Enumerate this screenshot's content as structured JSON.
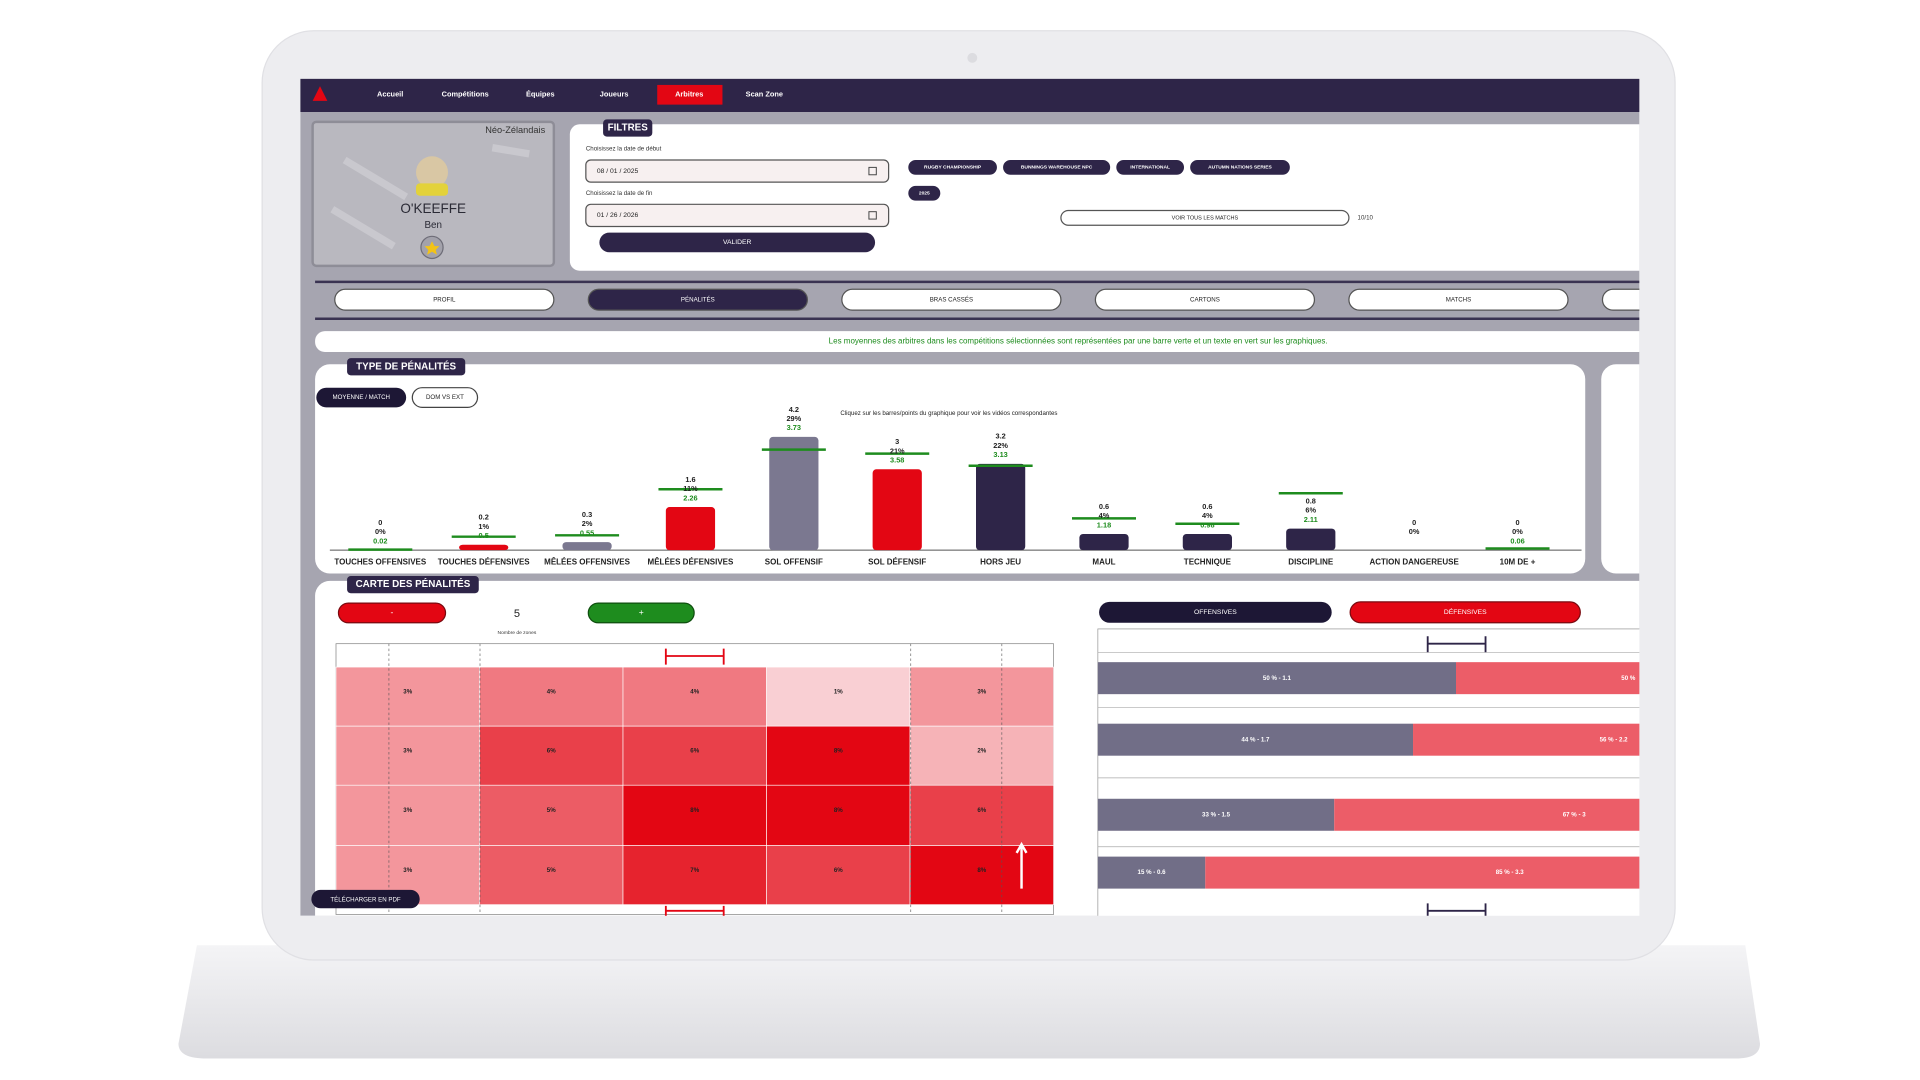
{
  "nav": {
    "items": [
      "Accueil",
      "Compétitions",
      "Équipes",
      "Joueurs",
      "Arbitres",
      "Scan Zone"
    ],
    "active": 4
  },
  "profile": {
    "nationality": "Néo-Zélandais",
    "last_name": "O'KEEFFE",
    "first_name": "Ben"
  },
  "filters": {
    "title": "FILTRES",
    "start_label": "Choisissez la date de début",
    "start_date": "08 / 01 / 2025",
    "end_label": "Choisissez la date de fin",
    "end_date": "01 / 26 / 2026",
    "submit": "VALIDER",
    "competitions": [
      "RUGBY CHAMPIONSHIP",
      "BUNNINGS WAREHOUSE NPC",
      "INTERNATIONAL",
      "AUTUMN NATIONS SERIES",
      "2025"
    ],
    "all_matches": "VOIR TOUS LES MATCHS",
    "count": "10/10"
  },
  "tabs": {
    "items": [
      "PROFIL",
      "PÉNALITÉS",
      "BRAS CASSÉS",
      "CARTONS",
      "MATCHS"
    ],
    "active": 1
  },
  "notice": "Les moyennes des arbitres dans les compétitions sélectionnées sont représentées par une barre verte et un texte en vert sur les graphiques.",
  "chart_data": {
    "type": "bar",
    "title": "TYPE DE PÉNALITÉS",
    "toggles": [
      "MOYENNE / MATCH",
      "DOM VS EXT"
    ],
    "hint": "Cliquez sur les barres/points du graphique pour voir les vidéos correspondantes",
    "categories": [
      "TOUCHES OFFENSIVES",
      "TOUCHES DÉFENSIVES",
      "MÊLÉES OFFENSIVES",
      "MÊLÉES DÉFENSIVES",
      "SOL OFFENSIF",
      "SOL DÉFENSIF",
      "HORS JEU",
      "MAUL",
      "TECHNIQUE",
      "DISCIPLINE",
      "ACTION DANGEREUSE",
      "10M DE +"
    ],
    "values": [
      0,
      0.2,
      0.3,
      1.6,
      4.2,
      3,
      3.2,
      0.6,
      0.6,
      0.8,
      0,
      0
    ],
    "share_labels": [
      "0%",
      "1%",
      "2%",
      "11%",
      "29%",
      "21%",
      "22%",
      "4%",
      "4%",
      "6%",
      "0%",
      "0%"
    ],
    "reference_values": [
      0.02,
      0.5,
      0.55,
      2.26,
      3.73,
      3.58,
      3.13,
      1.18,
      0.98,
      2.11,
      null,
      0.06
    ],
    "colors": [
      "#7b7890",
      "#e30613",
      "#7b7890",
      "#e30613",
      "#7b7890",
      "#e30613",
      "#2e2548",
      "#2e2548",
      "#2e2548",
      "#2e2548",
      "#2e2548",
      "#2e2548"
    ],
    "reference_color": "#1e8c1e"
  },
  "zone_map": {
    "title": "CARTE DES PÉNALITÉS",
    "minus": "-",
    "plus": "+",
    "zones": 5,
    "zones_label": "Nombre de zones",
    "values": [
      [
        3,
        4,
        4,
        1,
        3
      ],
      [
        3,
        6,
        6,
        8,
        2
      ],
      [
        3,
        5,
        8,
        8,
        6
      ],
      [
        3,
        5,
        7,
        6,
        8
      ]
    ],
    "labels": [
      [
        "3%",
        "4%",
        "4%",
        "1%",
        "3%"
      ],
      [
        "3%",
        "6%",
        "6%",
        "8%",
        "2%"
      ],
      [
        "3%",
        "5%",
        "8%",
        "8%",
        "6%"
      ],
      [
        "3%",
        "5%",
        "7%",
        "6%",
        "8%"
      ]
    ]
  },
  "split": {
    "offensive": "OFFENSIVES",
    "defensive": "DÉFENSIVES",
    "offensive_values": [
      50,
      44,
      33,
      15
    ],
    "offensive_labels": [
      "50 % - 1.1",
      "44 % - 1.7",
      "33 % - 1.5",
      "15 % - 0.6"
    ],
    "defensive_values": [
      50,
      56,
      67,
      85
    ],
    "defensive_labels": [
      "50 %",
      "56 % - 2.2",
      "67 % - 3",
      "85 % - 3.3"
    ]
  },
  "download": "TÉLÉCHARGER EN PDF"
}
